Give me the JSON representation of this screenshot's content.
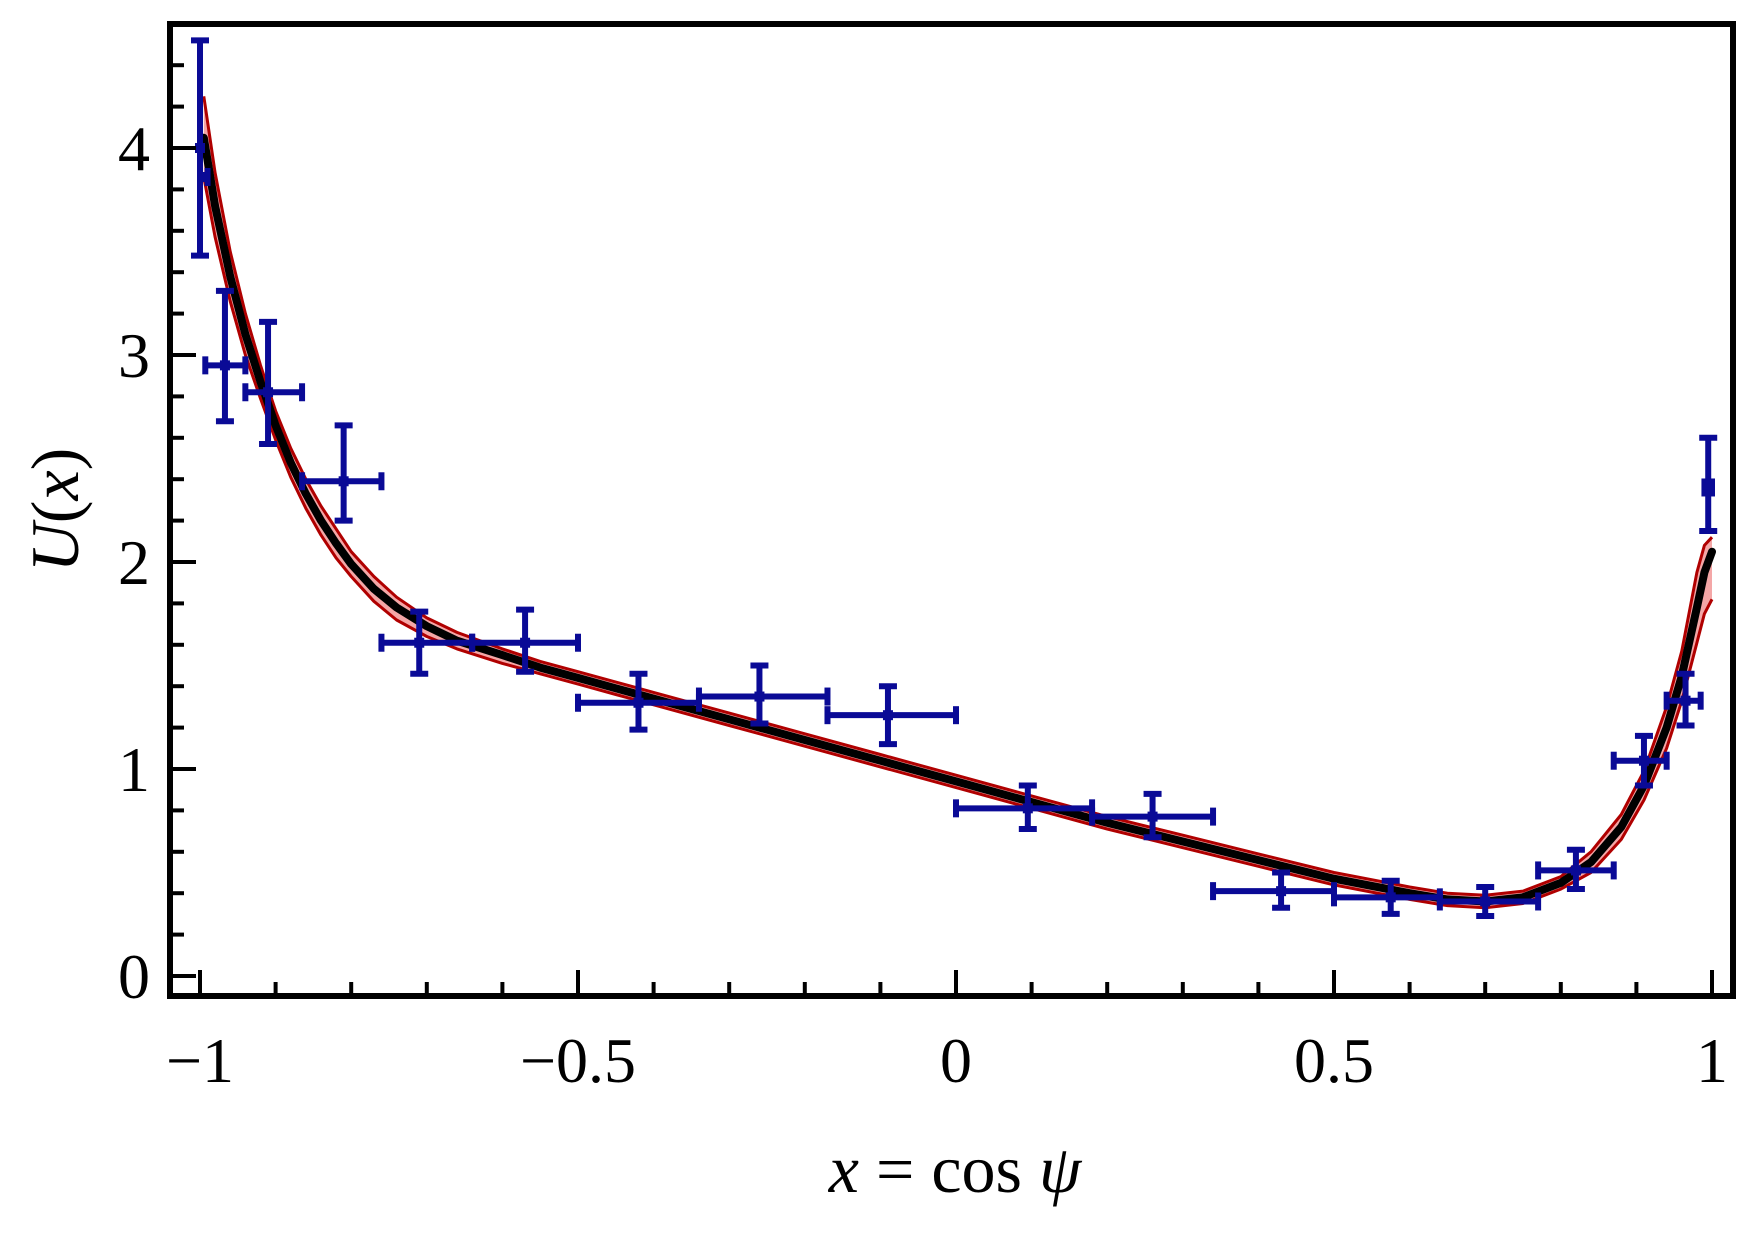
{
  "chart_data": {
    "type": "scatter",
    "title": "",
    "xlabel_parts": [
      "x",
      " = cos ",
      "ψ"
    ],
    "ylabel_parts": [
      "U",
      "(",
      "x",
      ")"
    ],
    "xlim": [
      -1.0,
      1.0
    ],
    "ylim": [
      -0.05,
      4.6
    ],
    "grid": false,
    "x_ticks": [
      -1,
      -0.5,
      0,
      0.5,
      1
    ],
    "x_tick_labels": [
      "−1",
      "−0.5",
      "0",
      "0.5",
      "1"
    ],
    "y_ticks": [
      0,
      1,
      2,
      3,
      4
    ],
    "y_tick_labels": [
      "0",
      "1",
      "2",
      "3",
      "4"
    ],
    "colors": {
      "data": "#0a0a96",
      "fit": "#000000",
      "band_fill": "#f4a7a7",
      "band_edge": "#b00000"
    },
    "data_points": [
      {
        "x": -1.0,
        "y": 4.0,
        "x_lo": -1.0,
        "x_hi": -1.0,
        "y_lo": 3.48,
        "y_hi": 4.52
      },
      {
        "x": -0.996,
        "y": 3.86,
        "x_lo": -1.0,
        "x_hi": -0.99,
        "y_lo": 3.86,
        "y_hi": 3.86
      },
      {
        "x": -0.967,
        "y": 2.95,
        "x_lo": -0.993,
        "x_hi": -0.94,
        "y_lo": 2.68,
        "y_hi": 3.31
      },
      {
        "x": -0.91,
        "y": 2.82,
        "x_lo": -0.94,
        "x_hi": -0.865,
        "y_lo": 2.57,
        "y_hi": 3.16
      },
      {
        "x": -0.81,
        "y": 2.39,
        "x_lo": -0.865,
        "x_hi": -0.76,
        "y_lo": 2.2,
        "y_hi": 2.66
      },
      {
        "x": -0.71,
        "y": 1.61,
        "x_lo": -0.76,
        "x_hi": -0.64,
        "y_lo": 1.46,
        "y_hi": 1.76
      },
      {
        "x": -0.57,
        "y": 1.61,
        "x_lo": -0.64,
        "x_hi": -0.5,
        "y_lo": 1.47,
        "y_hi": 1.77
      },
      {
        "x": -0.42,
        "y": 1.32,
        "x_lo": -0.5,
        "x_hi": -0.34,
        "y_lo": 1.19,
        "y_hi": 1.46
      },
      {
        "x": -0.26,
        "y": 1.35,
        "x_lo": -0.34,
        "x_hi": -0.17,
        "y_lo": 1.22,
        "y_hi": 1.5
      },
      {
        "x": -0.09,
        "y": 1.26,
        "x_lo": -0.17,
        "x_hi": 0.0,
        "y_lo": 1.12,
        "y_hi": 1.4
      },
      {
        "x": 0.095,
        "y": 0.81,
        "x_lo": 0.0,
        "x_hi": 0.18,
        "y_lo": 0.71,
        "y_hi": 0.92
      },
      {
        "x": 0.26,
        "y": 0.77,
        "x_lo": 0.18,
        "x_hi": 0.34,
        "y_lo": 0.67,
        "y_hi": 0.88
      },
      {
        "x": 0.43,
        "y": 0.41,
        "x_lo": 0.34,
        "x_hi": 0.5,
        "y_lo": 0.33,
        "y_hi": 0.5
      },
      {
        "x": 0.575,
        "y": 0.38,
        "x_lo": 0.5,
        "x_hi": 0.64,
        "y_lo": 0.3,
        "y_hi": 0.46
      },
      {
        "x": 0.7,
        "y": 0.36,
        "x_lo": 0.64,
        "x_hi": 0.77,
        "y_lo": 0.29,
        "y_hi": 0.43
      },
      {
        "x": 0.82,
        "y": 0.51,
        "x_lo": 0.77,
        "x_hi": 0.87,
        "y_lo": 0.42,
        "y_hi": 0.61
      },
      {
        "x": 0.91,
        "y": 1.04,
        "x_lo": 0.87,
        "x_hi": 0.94,
        "y_lo": 0.92,
        "y_hi": 1.16
      },
      {
        "x": 0.965,
        "y": 1.33,
        "x_lo": 0.94,
        "x_hi": 0.985,
        "y_lo": 1.21,
        "y_hi": 1.46
      },
      {
        "x": 0.995,
        "y": 2.36,
        "x_lo": 0.99,
        "x_hi": 1.0,
        "y_lo": 2.15,
        "y_hi": 2.6
      }
    ],
    "fit_curve": {
      "x": [
        -0.995,
        -0.98,
        -0.96,
        -0.94,
        -0.92,
        -0.9,
        -0.88,
        -0.86,
        -0.84,
        -0.82,
        -0.8,
        -0.77,
        -0.74,
        -0.7,
        -0.66,
        -0.6,
        -0.55,
        -0.5,
        -0.45,
        -0.4,
        -0.3,
        -0.2,
        -0.1,
        0.0,
        0.1,
        0.2,
        0.3,
        0.4,
        0.5,
        0.6,
        0.65,
        0.7,
        0.75,
        0.8,
        0.84,
        0.88,
        0.91,
        0.94,
        0.96,
        0.98,
        0.99,
        1.0
      ],
      "y": [
        4.05,
        3.72,
        3.38,
        3.1,
        2.87,
        2.66,
        2.48,
        2.33,
        2.2,
        2.09,
        1.99,
        1.87,
        1.78,
        1.69,
        1.62,
        1.55,
        1.49,
        1.44,
        1.39,
        1.34,
        1.24,
        1.14,
        1.04,
        0.94,
        0.84,
        0.74,
        0.65,
        0.56,
        0.47,
        0.4,
        0.37,
        0.36,
        0.38,
        0.45,
        0.55,
        0.72,
        0.92,
        1.2,
        1.45,
        1.78,
        1.95,
        2.05
      ],
      "band_hi": [
        4.25,
        3.88,
        3.5,
        3.2,
        2.95,
        2.73,
        2.55,
        2.4,
        2.27,
        2.16,
        2.05,
        1.93,
        1.83,
        1.73,
        1.66,
        1.58,
        1.52,
        1.47,
        1.42,
        1.37,
        1.27,
        1.17,
        1.07,
        0.97,
        0.87,
        0.77,
        0.68,
        0.59,
        0.5,
        0.43,
        0.4,
        0.39,
        0.41,
        0.48,
        0.6,
        0.78,
        0.99,
        1.3,
        1.57,
        1.95,
        2.08,
        2.12
      ],
      "band_lo": [
        3.86,
        3.57,
        3.26,
        3.0,
        2.79,
        2.59,
        2.41,
        2.26,
        2.13,
        2.02,
        1.93,
        1.81,
        1.72,
        1.64,
        1.58,
        1.51,
        1.46,
        1.41,
        1.36,
        1.31,
        1.21,
        1.11,
        1.01,
        0.91,
        0.81,
        0.71,
        0.62,
        0.53,
        0.44,
        0.37,
        0.34,
        0.33,
        0.35,
        0.42,
        0.5,
        0.66,
        0.85,
        1.1,
        1.33,
        1.61,
        1.75,
        1.82
      ]
    }
  }
}
